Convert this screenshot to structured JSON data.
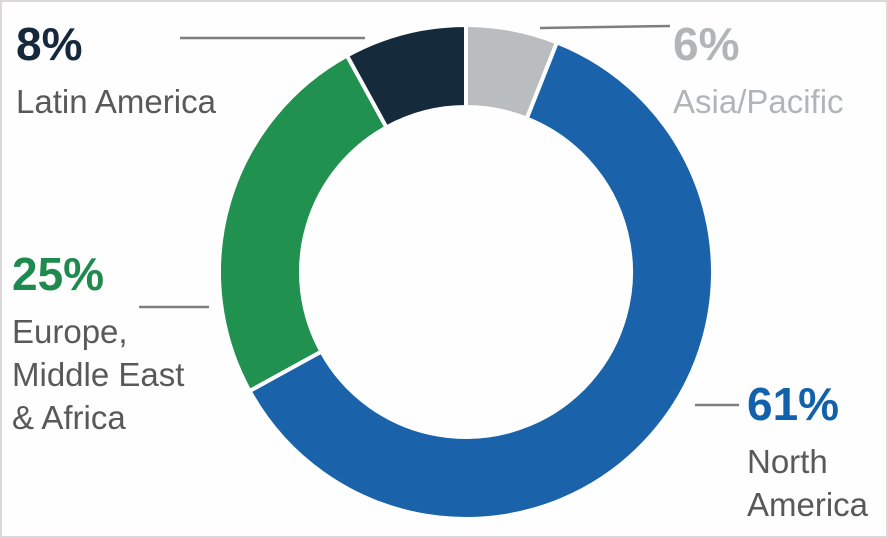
{
  "chart_data": {
    "type": "pie",
    "variant": "donut",
    "title": "",
    "start_angle_deg": 0,
    "direction": "clockwise",
    "donut_hole_ratio": 0.67,
    "legend_position": "callouts",
    "grid": false,
    "segments": [
      {
        "label": "Asia/Pacific",
        "value": 6,
        "pct_label": "6%",
        "color": "#babdbf",
        "label_color": "#b2b5b8",
        "name_lines": [
          "Asia/Pacific"
        ]
      },
      {
        "label": "North America",
        "value": 61,
        "pct_label": "61%",
        "color": "#1a63aa",
        "label_color": "#1261ac",
        "name_lines": [
          "North",
          "America"
        ]
      },
      {
        "label": "Europe, Middle East & Africa",
        "value": 25,
        "pct_label": "25%",
        "color": "#21914f",
        "label_color": "#1f8a4e",
        "name_lines": [
          "Europe,",
          "Middle East",
          "& Africa"
        ]
      },
      {
        "label": "Latin America",
        "value": 8,
        "pct_label": "8%",
        "color": "#152a3b",
        "label_color": "#16293c",
        "name_lines": [
          "Latin America"
        ]
      }
    ],
    "colors": {
      "background": "#fefefe",
      "slice_gap_stroke": "#ffffff",
      "leader_line": "#7f7f7f",
      "label_text": "#595959"
    }
  }
}
